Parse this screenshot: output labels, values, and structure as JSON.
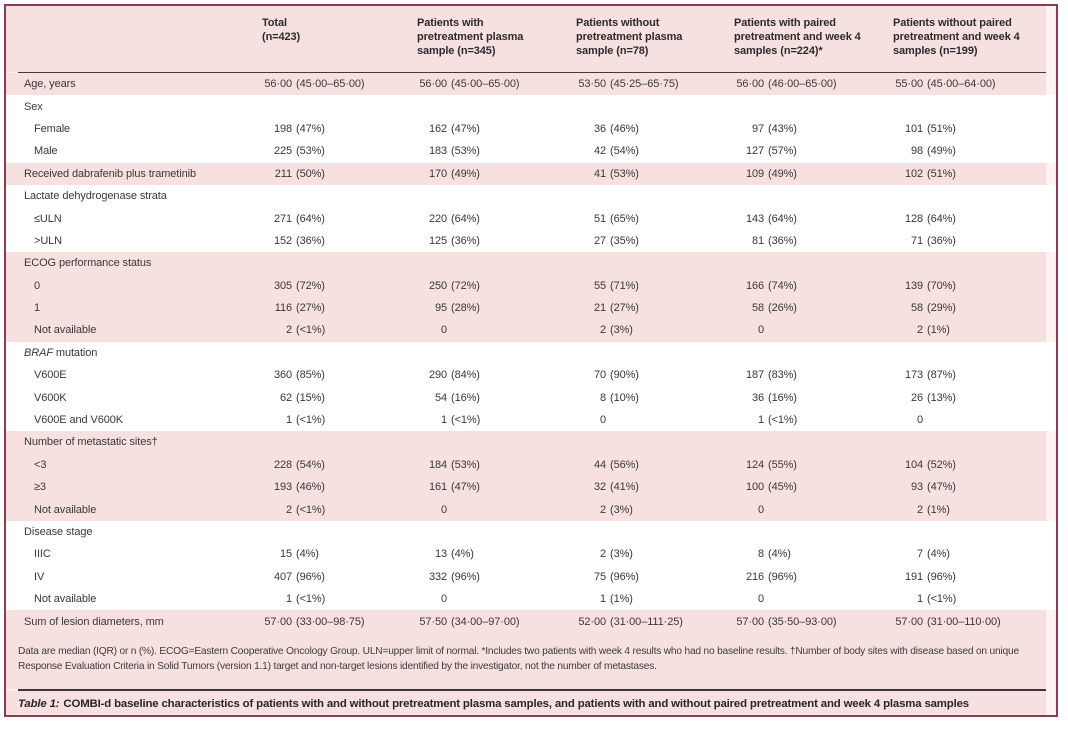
{
  "palette": {
    "frame_border": "#8d3a52",
    "band_pink": "#f7e1e0",
    "band_white": "#ffffff",
    "rule_dark": "#453a3d"
  },
  "table": {
    "columns": [
      "",
      "Total\n(n=423)",
      "Patients with\npretreatment plasma\nsample (n=345)",
      "Patients without\npretreatment plasma\nsample (n=78)",
      "Patients with paired\npretreatment and week 4\nsamples (n=224)*",
      "Patients without paired\npretreatment and week 4\nsamples (n=199)"
    ],
    "rows": [
      {
        "label": "Age, years",
        "band": "pink",
        "values": [
          "56·00 (45·00–65·00)",
          "56·00 (45·00–65·00)",
          "53·50 (45·25–65·75)",
          "56·00 (46·00–65·00)",
          "55·00 (45·00–64·00)"
        ]
      },
      {
        "label": "Sex",
        "band": "white",
        "values": null
      },
      {
        "label": "Female",
        "band": "white",
        "indent": true,
        "values": [
          "198 (47%)",
          "162 (47%)",
          "36 (46%)",
          "97 (43%)",
          "101 (51%)"
        ]
      },
      {
        "label": "Male",
        "band": "white",
        "indent": true,
        "values": [
          "225 (53%)",
          "183 (53%)",
          "42 (54%)",
          "127 (57%)",
          "98 (49%)"
        ]
      },
      {
        "label": "Received dabrafenib plus trametinib",
        "band": "pink",
        "values": [
          "211 (50%)",
          "170 (49%)",
          "41 (53%)",
          "109 (49%)",
          "102 (51%)"
        ]
      },
      {
        "label": "Lactate dehydrogenase strata",
        "band": "white",
        "values": null
      },
      {
        "label": "≤ULN",
        "band": "white",
        "indent": true,
        "values": [
          "271 (64%)",
          "220 (64%)",
          "51 (65%)",
          "143 (64%)",
          "128 (64%)"
        ]
      },
      {
        "label": ">ULN",
        "band": "white",
        "indent": true,
        "values": [
          "152 (36%)",
          "125 (36%)",
          "27 (35%)",
          "81 (36%)",
          "71 (36%)"
        ]
      },
      {
        "label": "ECOG performance status",
        "band": "pink",
        "values": null
      },
      {
        "label": "0",
        "band": "pink",
        "indent": true,
        "values": [
          "305 (72%)",
          "250 (72%)",
          "55 (71%)",
          "166 (74%)",
          "139 (70%)"
        ]
      },
      {
        "label": "1",
        "band": "pink",
        "indent": true,
        "values": [
          "116 (27%)",
          "95 (28%)",
          "21 (27%)",
          "58 (26%)",
          "58 (29%)"
        ]
      },
      {
        "label": "Not available",
        "band": "pink",
        "indent": true,
        "values": [
          "2 (<1%)",
          "0",
          "2 (3%)",
          "0",
          "2 (1%)"
        ]
      },
      {
        "label": "BRAF mutation",
        "band": "white",
        "italic_prefix": "BRAF",
        "values": null
      },
      {
        "label": "V600E",
        "band": "white",
        "indent": true,
        "values": [
          "360 (85%)",
          "290 (84%)",
          "70 (90%)",
          "187 (83%)",
          "173 (87%)"
        ]
      },
      {
        "label": "V600K",
        "band": "white",
        "indent": true,
        "values": [
          "62 (15%)",
          "54 (16%)",
          "8 (10%)",
          "36 (16%)",
          "26 (13%)"
        ]
      },
      {
        "label": "V600E and V600K",
        "band": "white",
        "indent": true,
        "values": [
          "1 (<1%)",
          "1 (<1%)",
          "0",
          "1 (<1%)",
          "0"
        ]
      },
      {
        "label": "Number of metastatic sites†",
        "band": "pink",
        "values": null
      },
      {
        "label": "<3",
        "band": "pink",
        "indent": true,
        "values": [
          "228 (54%)",
          "184 (53%)",
          "44 (56%)",
          "124 (55%)",
          "104 (52%)"
        ]
      },
      {
        "label": "≥3",
        "band": "pink",
        "indent": true,
        "values": [
          "193 (46%)",
          "161 (47%)",
          "32 (41%)",
          "100 (45%)",
          "93 (47%)"
        ]
      },
      {
        "label": "Not available",
        "band": "pink",
        "indent": true,
        "values": [
          "2 (<1%)",
          "0",
          "2 (3%)",
          "0",
          "2 (1%)"
        ]
      },
      {
        "label": "Disease stage",
        "band": "white",
        "values": null
      },
      {
        "label": "IIIC",
        "band": "white",
        "indent": true,
        "values": [
          "15 (4%)",
          "13 (4%)",
          "2 (3%)",
          "8 (4%)",
          "7 (4%)"
        ]
      },
      {
        "label": "IV",
        "band": "white",
        "indent": true,
        "values": [
          "407 (96%)",
          "332 (96%)",
          "75 (96%)",
          "216 (96%)",
          "191 (96%)"
        ]
      },
      {
        "label": "Not available",
        "band": "white",
        "indent": true,
        "values": [
          "1 (<1%)",
          "0",
          "1 (1%)",
          "0",
          "1 (<1%)"
        ]
      },
      {
        "label": "Sum of lesion diameters, mm",
        "band": "pink",
        "values": [
          "57·00 (33·00–98·75)",
          "57·50 (34·00–97·00)",
          "52·00 (31·00–111·25)",
          "57·00 (35·50–93·00)",
          "57·00 (31·00–110·00)"
        ]
      }
    ],
    "footnote": "Data are median (IQR) or n (%). ECOG=Eastern Cooperative Oncology Group. ULN=upper limit of normal. *Includes two patients with week 4 results who had no baseline results. †Number of body sites with disease based on unique Response Evaluation Criteria in Solid Tumors (version 1.1) target and non-target lesions identified by the investigator, not the number of metastases.",
    "caption_label": "Table 1:",
    "caption_text": "COMBI-d baseline characteristics of patients with and without pretreatment plasma samples, and patients with and without paired pretreatment and week 4 plasma samples"
  }
}
